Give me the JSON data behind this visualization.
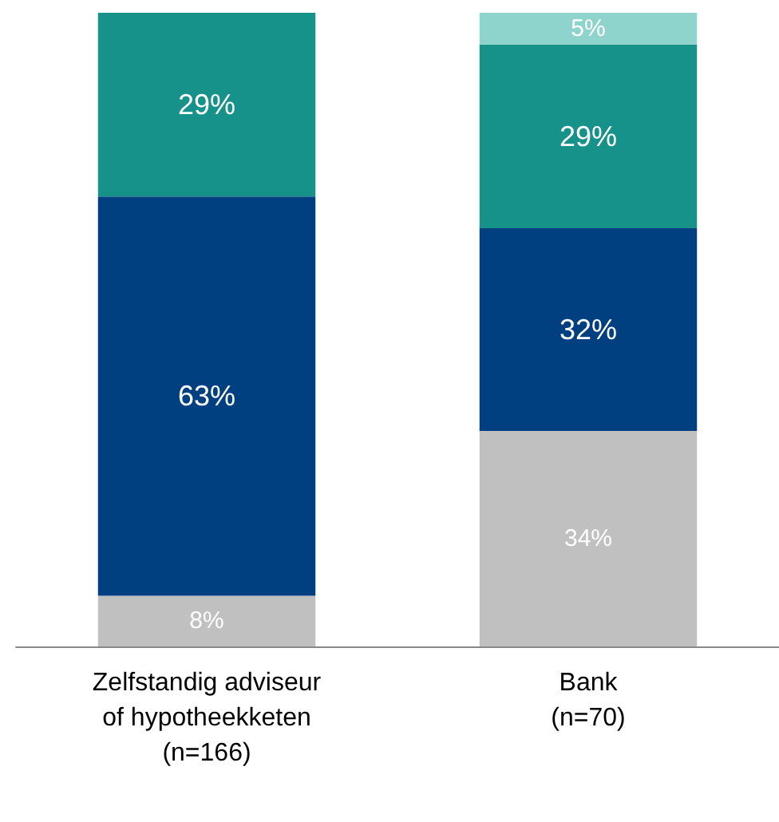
{
  "chart_data": {
    "type": "bar",
    "stacked": true,
    "categories": [
      "Zelfstandig adviseur\nof hypotheekketen\n(n=166)",
      "Bank\n(n=70)"
    ],
    "series": [
      {
        "color": "#c0c0c0",
        "values": [
          8,
          34
        ],
        "value_labels": [
          "8%",
          "34%"
        ]
      },
      {
        "color": "#003f80",
        "values": [
          63,
          32
        ],
        "value_labels": [
          "63%",
          "32%"
        ]
      },
      {
        "color": "#17928a",
        "values": [
          29,
          29
        ],
        "value_labels": [
          "29%",
          "29%"
        ]
      },
      {
        "color": "#8fd4cc",
        "values": [
          null,
          5
        ],
        "value_labels": [
          null,
          "5%"
        ]
      }
    ]
  }
}
